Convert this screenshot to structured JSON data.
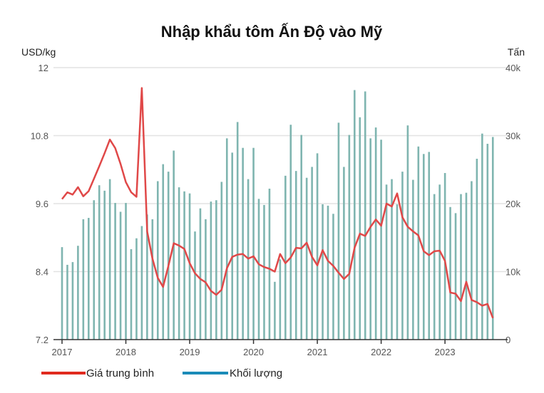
{
  "chart_data": {
    "type": "bar+line",
    "title": "Nhập khẩu tôm Ấn Độ vào Mỹ",
    "ylabel_left": "USD/kg",
    "ylabel_right": "Tấn",
    "ylim_left": [
      7.2,
      12
    ],
    "ylim_right": [
      0,
      40000
    ],
    "yticks_left": [
      "12",
      "10.8",
      "9.6",
      "8.4",
      "7.2"
    ],
    "yticks_left_values": [
      12,
      10.8,
      9.6,
      8.4,
      7.2
    ],
    "yticks_right": [
      "40k",
      "30k",
      "20k",
      "10k",
      "0"
    ],
    "yticks_right_values": [
      40,
      30,
      20,
      10,
      0
    ],
    "xticks": [
      "2017",
      "2018",
      "2019",
      "2020",
      "2021",
      "2022",
      "2023"
    ],
    "x_start": "2017-01",
    "x_frequency": "monthly",
    "grid": true,
    "legend_position": "bottom-left",
    "colors": {
      "price": "#e04848",
      "volume_bars": "#7fb5b0",
      "volume_legend": "#1a8bb8"
    },
    "series": [
      {
        "name": "Giá trung bình",
        "axis": "left",
        "type": "line",
        "values": [
          9.68,
          9.8,
          9.76,
          9.89,
          9.73,
          9.82,
          10.04,
          10.26,
          10.49,
          10.73,
          10.58,
          10.3,
          9.98,
          9.8,
          9.72,
          11.64,
          9.11,
          8.63,
          8.29,
          8.13,
          8.5,
          8.9,
          8.86,
          8.8,
          8.55,
          8.37,
          8.27,
          8.21,
          8.06,
          7.99,
          8.08,
          8.46,
          8.66,
          8.7,
          8.71,
          8.63,
          8.67,
          8.53,
          8.48,
          8.45,
          8.4,
          8.71,
          8.55,
          8.65,
          8.82,
          8.81,
          8.91,
          8.66,
          8.51,
          8.78,
          8.59,
          8.5,
          8.38,
          8.27,
          8.36,
          8.82,
          9.07,
          9.03,
          9.19,
          9.32,
          9.21,
          9.6,
          9.55,
          9.78,
          9.36,
          9.19,
          9.11,
          9.04,
          8.76,
          8.69,
          8.76,
          8.77,
          8.59,
          8.03,
          8.01,
          7.88,
          8.22,
          7.9,
          7.86,
          7.8,
          7.83,
          7.58
        ]
      },
      {
        "name": "Khối lượng",
        "axis": "right",
        "type": "bar",
        "unit": "thousand tonnes",
        "values": [
          13.6,
          11.0,
          11.4,
          13.8,
          17.7,
          17.9,
          20.5,
          22.7,
          21.9,
          23.6,
          20.1,
          18.8,
          20.1,
          13.3,
          14.9,
          16.7,
          18.4,
          17.7,
          23.3,
          25.8,
          24.7,
          27.8,
          22.4,
          21.8,
          21.5,
          15.9,
          19.3,
          17.7,
          20.3,
          20.5,
          23.2,
          29.6,
          27.5,
          32.0,
          28.2,
          23.6,
          28.2,
          20.7,
          19.8,
          22.2,
          8.5,
          11.8,
          24.1,
          31.6,
          24.8,
          30.1,
          23.8,
          25.4,
          27.4,
          19.9,
          19.7,
          18.5,
          31.9,
          25.4,
          30.1,
          36.7,
          32.7,
          36.5,
          29.6,
          31.2,
          29.4,
          22.8,
          23.6,
          19.9,
          24.7,
          31.5,
          23.5,
          28.4,
          27.3,
          27.6,
          21.4,
          22.8,
          24.5,
          19.5,
          18.6,
          21.4,
          21.6,
          23.3,
          26.6,
          30.3,
          28.8,
          29.8
        ]
      }
    ]
  }
}
